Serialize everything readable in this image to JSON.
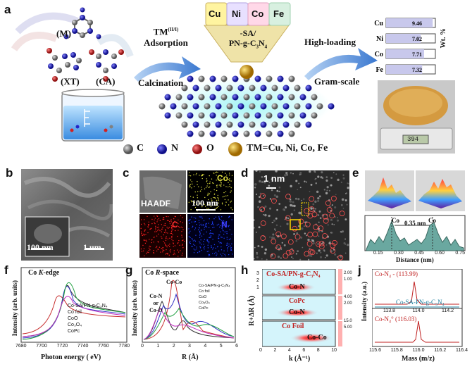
{
  "panel_a": {
    "letter": "a",
    "m_label": "(M)",
    "xt_label": "(XT)",
    "ca_label": "(CA)",
    "tm_adsorption": "TM",
    "tm_superscript": "(II/I)",
    "adsorption": "Adsorption",
    "calcination": "Calcination",
    "metals": [
      "Cu",
      "Ni",
      "Co",
      "Fe"
    ],
    "funnel_line1": "-SA/",
    "funnel_line2": "PN-g-C",
    "funnel_sub1": "3",
    "funnel_mid": "N",
    "funnel_sub2": "4",
    "high_loading": "High-loading",
    "gram_scale": "Gram-scale",
    "legend": {
      "c": "C",
      "n": "N",
      "o": "O",
      "tm": "TM=Cu, Ni, Co, Fe"
    },
    "scale_readout": "394",
    "wt_label": "Wt. %",
    "colors": {
      "carbon": "#808080",
      "nitrogen": "#2424c8",
      "oxygen": "#d42020",
      "metal": "#d4a020",
      "arrow": "#5a8fd8",
      "powder": "#d49a40"
    }
  },
  "loading_chart": {
    "chart_data": {
      "type": "bar",
      "categories": [
        "Cu",
        "Ni",
        "Co",
        "Fe"
      ],
      "values": [
        9.46,
        7.02,
        7.71,
        7.32
      ],
      "ylabel": "Wt. %"
    },
    "labels": [
      "9.46",
      "7.02",
      "7.71",
      "7.32"
    ]
  },
  "panel_b": {
    "letter": "b",
    "scale1": "100 nm",
    "scale2": "1 um"
  },
  "panel_c": {
    "letter": "c",
    "haadf": "HAADF",
    "co": "Co",
    "c": "C",
    "n": "N",
    "scale": "100 nm"
  },
  "panel_d": {
    "letter": "d",
    "scale": "1 nm"
  },
  "panel_e": {
    "letter": "e",
    "co1": "Co",
    "co2": "Co",
    "distance_label": "0.35 nm",
    "xlabel": "Distance (nm)",
    "ticks": [
      "0.15",
      "0.30",
      "0.45",
      "0.60",
      "0.75"
    ]
  },
  "panel_f": {
    "letter": "f",
    "title_el": "Co",
    "title_edge": "K",
    "title_rest": "-edge",
    "xlabel": "Photon energy ( eV)",
    "ylabel": "Intensity (arb. units)",
    "xticks": [
      "7680",
      "7700",
      "7720",
      "7740",
      "7760",
      "7780"
    ],
    "legend": [
      "Co-SA/PN-g-C₃N₄",
      "Co foil",
      "CoO",
      "Co₃O₄",
      "CoPc"
    ],
    "chart_data": {
      "type": "line",
      "xlim": [
        7680,
        7780
      ],
      "xlabel": "Photon energy ( eV)",
      "ylabel": "Intensity (arb. units)",
      "series": [
        {
          "name": "Co-SA/PN-g-C₃N₄",
          "color": "#333333"
        },
        {
          "name": "Co foil",
          "color": "#c83030"
        },
        {
          "name": "CoO",
          "color": "#3030c8"
        },
        {
          "name": "Co₃O₄",
          "color": "#20a040"
        },
        {
          "name": "CoPc",
          "color": "#c030c0"
        }
      ]
    }
  },
  "panel_g": {
    "letter": "g",
    "title_el": "Co",
    "title_r": "R",
    "title_rest": "-space",
    "ann_coco": "Co-Co",
    "ann_con": "Co-N",
    "ann_or": "or",
    "ann_coo": "Co-O",
    "xlabel": "R (Å)",
    "ylabel": "Intensity (arb. units)",
    "xticks": [
      "0",
      "1",
      "2",
      "3",
      "4",
      "5",
      "6"
    ],
    "legend": [
      "Co-SA/PN-g-C₃N₄",
      "Co foil",
      "CoO",
      "Co₃O₄",
      "CoPc"
    ],
    "chart_data": {
      "type": "line",
      "xlim": [
        0,
        6
      ],
      "xlabel": "R (Å)",
      "ylabel": "Intensity (arb. units)",
      "series": [
        {
          "name": "Co-SA/PN-g-C₃N₄",
          "color": "#333333"
        },
        {
          "name": "Co foil",
          "color": "#c83030"
        },
        {
          "name": "CoO",
          "color": "#3030c8"
        },
        {
          "name": "Co₃O₄",
          "color": "#20a040"
        },
        {
          "name": "CoPc",
          "color": "#c030c0"
        }
      ]
    }
  },
  "panel_h": {
    "letter": "h",
    "top_label": "Co-SA/PN-g-C₃N₄",
    "top_peak": "Co-N",
    "mid_label": "CoPc",
    "mid_peak": "Co-N",
    "bot_label": "Co Foil",
    "bot_peak": "Co-Co",
    "xlabel": "k (Å⁻¹)",
    "ylabel": "R+ΔR (Å)",
    "xticks": [
      "0",
      "2",
      "4",
      "6",
      "8",
      "10"
    ],
    "yticks": [
      "1",
      "2",
      "3"
    ],
    "cbar_top": [
      "2.00",
      "1.00"
    ],
    "cbar_mid": [
      "4.00",
      "2.00"
    ],
    "cbar_bot": [
      "15.0",
      "5.00"
    ]
  },
  "panel_j": {
    "letter": "j",
    "top_label": "Co-N₄ - (113.99)",
    "mid_label": "Co-SA-PN-g-C₃N₄",
    "top_ticks": [
      "113.8",
      "114.0",
      "114.2"
    ],
    "bot_label": "Co-N₄° (116.03)",
    "xlabel": "Mass (m/z)",
    "ylabel": "Intensity (a.u.)",
    "xticks": [
      "115.6",
      "115.8",
      "116.0",
      "116.2",
      "116.4"
    ]
  }
}
